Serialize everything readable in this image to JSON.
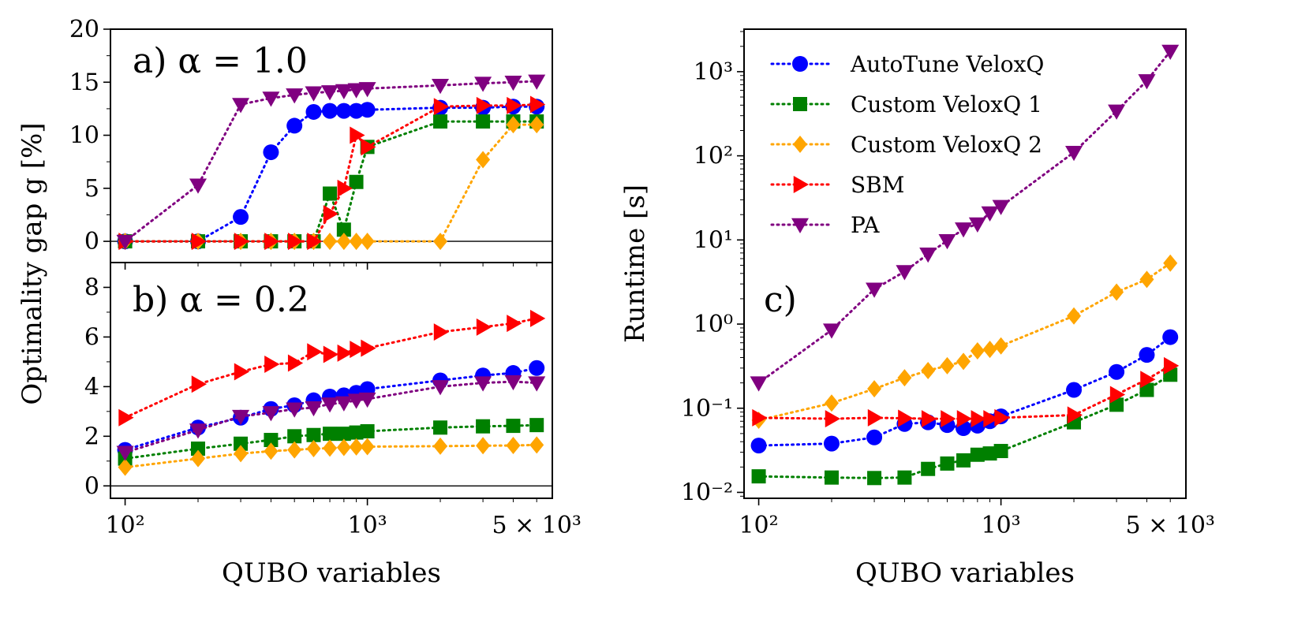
{
  "chart_data": [
    {
      "id": "a",
      "type": "line",
      "panel_label": "a) α = 1.0",
      "ylabel": "Optimality gap g [%]",
      "xlabel": "",
      "xscale": "log",
      "xlim": [
        87,
        5800
      ],
      "ylim": [
        -2,
        20
      ],
      "yticks": [
        0,
        5,
        10,
        15,
        20
      ],
      "ytick_labels": [
        "0",
        "5",
        "10",
        "15",
        "20"
      ],
      "hline": 0,
      "series": [
        {
          "name": "AutoTune VeloxQ",
          "color": "#0000ff",
          "marker": "circle",
          "x": [
            100,
            200,
            300,
            400,
            500,
            600,
            700,
            800,
            900,
            1000,
            2000,
            3000,
            4000,
            5000
          ],
          "y": [
            0,
            0,
            2.3,
            8.4,
            10.9,
            12.2,
            12.3,
            12.3,
            12.3,
            12.4,
            12.6,
            12.6,
            12.7,
            12.7
          ]
        },
        {
          "name": "Custom VeloxQ 1",
          "color": "#008000",
          "marker": "square",
          "x": [
            100,
            200,
            300,
            400,
            500,
            600,
            700,
            800,
            900,
            1000,
            2000,
            3000,
            4000,
            5000
          ],
          "y": [
            0,
            0,
            0,
            0,
            0,
            0,
            4.5,
            1.1,
            5.6,
            8.9,
            11.3,
            11.3,
            11.3,
            11.3
          ]
        },
        {
          "name": "Custom VeloxQ 2",
          "color": "#ffa500",
          "marker": "diamond",
          "x": [
            100,
            200,
            300,
            400,
            500,
            600,
            700,
            800,
            900,
            1000,
            2000,
            3000,
            4000,
            5000
          ],
          "y": [
            0,
            0,
            0,
            0,
            0,
            0,
            0,
            0,
            0,
            0,
            0,
            7.7,
            11.0,
            11.0
          ]
        },
        {
          "name": "SBM",
          "color": "#ff0000",
          "marker": "triangle-right",
          "x": [
            100,
            200,
            300,
            400,
            500,
            600,
            700,
            800,
            900,
            1000,
            2000,
            3000,
            4000,
            5000
          ],
          "y": [
            0,
            0,
            0,
            0,
            0,
            0,
            2.6,
            5.0,
            10.0,
            8.9,
            12.7,
            12.8,
            12.8,
            12.9
          ]
        },
        {
          "name": "PA",
          "color": "#800080",
          "marker": "triangle-down",
          "x": [
            100,
            200,
            300,
            400,
            500,
            600,
            700,
            800,
            900,
            1000,
            2000,
            3000,
            4000,
            5000
          ],
          "y": [
            0,
            5.3,
            12.9,
            13.5,
            13.8,
            14.0,
            14.1,
            14.2,
            14.3,
            14.4,
            14.7,
            14.9,
            15.0,
            15.1
          ]
        }
      ]
    },
    {
      "id": "b",
      "type": "line",
      "panel_label": "b) α = 0.2",
      "ylabel": "",
      "xlabel": "QUBO variables",
      "xscale": "log",
      "xlim": [
        87,
        5800
      ],
      "ylim": [
        -0.5,
        9
      ],
      "yticks": [
        0,
        2,
        4,
        6,
        8
      ],
      "ytick_labels": [
        "0",
        "2",
        "4",
        "6",
        "8"
      ],
      "xticks": [
        100,
        1000,
        5000
      ],
      "xtick_labels": [
        "10²",
        "10³",
        "5 × 10³"
      ],
      "hline": 0,
      "series": [
        {
          "name": "AutoTune VeloxQ",
          "color": "#0000ff",
          "marker": "circle",
          "x": [
            100,
            200,
            300,
            400,
            500,
            600,
            700,
            800,
            900,
            1000,
            2000,
            3000,
            4000,
            5000
          ],
          "y": [
            1.45,
            2.35,
            2.75,
            3.1,
            3.25,
            3.45,
            3.6,
            3.65,
            3.75,
            3.9,
            4.25,
            4.45,
            4.55,
            4.75
          ]
        },
        {
          "name": "Custom VeloxQ 1",
          "color": "#008000",
          "marker": "square",
          "x": [
            100,
            200,
            300,
            400,
            500,
            600,
            700,
            800,
            900,
            1000,
            2000,
            3000,
            4000,
            5000
          ],
          "y": [
            1.1,
            1.5,
            1.7,
            1.85,
            2.0,
            2.05,
            2.1,
            2.1,
            2.15,
            2.2,
            2.35,
            2.4,
            2.42,
            2.45
          ]
        },
        {
          "name": "Custom VeloxQ 2",
          "color": "#ffa500",
          "marker": "diamond",
          "x": [
            100,
            200,
            300,
            400,
            500,
            600,
            700,
            800,
            900,
            1000,
            2000,
            3000,
            4000,
            5000
          ],
          "y": [
            0.75,
            1.1,
            1.3,
            1.4,
            1.45,
            1.5,
            1.52,
            1.55,
            1.57,
            1.58,
            1.6,
            1.62,
            1.63,
            1.65
          ]
        },
        {
          "name": "SBM",
          "color": "#ff0000",
          "marker": "triangle-right",
          "x": [
            100,
            200,
            300,
            400,
            500,
            600,
            700,
            800,
            900,
            1000,
            2000,
            3000,
            4000,
            5000
          ],
          "y": [
            2.75,
            4.1,
            4.6,
            4.9,
            4.95,
            5.4,
            5.3,
            5.35,
            5.5,
            5.55,
            6.2,
            6.4,
            6.55,
            6.75
          ]
        },
        {
          "name": "PA",
          "color": "#800080",
          "marker": "triangle-down",
          "x": [
            100,
            200,
            300,
            400,
            500,
            600,
            700,
            800,
            900,
            1000,
            2000,
            3000,
            4000,
            5000
          ],
          "y": [
            1.35,
            2.25,
            2.8,
            2.95,
            3.1,
            3.15,
            3.3,
            3.35,
            3.45,
            3.5,
            4.0,
            4.15,
            4.2,
            4.15
          ]
        }
      ]
    },
    {
      "id": "c",
      "type": "line",
      "panel_label": "c)",
      "ylabel": "Runtime [s]",
      "xlabel": "QUBO variables",
      "xscale": "log",
      "yscale": "log",
      "xlim": [
        87,
        5800
      ],
      "ylim": [
        0.0085,
        3200
      ],
      "yticks": [
        0.01,
        0.1,
        1,
        10,
        100,
        1000
      ],
      "ytick_labels": [
        "10⁻²",
        "10⁻¹",
        "10⁰",
        "10¹",
        "10²",
        "10³"
      ],
      "xticks": [
        100,
        1000,
        5000
      ],
      "xtick_labels": [
        "10²",
        "10³",
        "5 × 10³"
      ],
      "legend": "top-left",
      "series": [
        {
          "name": "AutoTune VeloxQ",
          "color": "#0000ff",
          "marker": "circle",
          "x": [
            100,
            200,
            300,
            400,
            500,
            600,
            700,
            800,
            900,
            1000,
            2000,
            3000,
            4000,
            5000
          ],
          "y": [
            0.036,
            0.038,
            0.045,
            0.065,
            0.068,
            0.063,
            0.058,
            0.062,
            0.07,
            0.08,
            0.165,
            0.27,
            0.43,
            0.7
          ]
        },
        {
          "name": "Custom VeloxQ 1",
          "color": "#008000",
          "marker": "square",
          "x": [
            100,
            200,
            300,
            400,
            500,
            600,
            700,
            800,
            900,
            1000,
            2000,
            3000,
            4000,
            5000
          ],
          "y": [
            0.0155,
            0.015,
            0.0148,
            0.015,
            0.019,
            0.022,
            0.024,
            0.028,
            0.029,
            0.031,
            0.068,
            0.11,
            0.165,
            0.25
          ]
        },
        {
          "name": "Custom VeloxQ 2",
          "color": "#ffa500",
          "marker": "diamond",
          "x": [
            100,
            200,
            300,
            400,
            500,
            600,
            700,
            800,
            900,
            1000,
            2000,
            3000,
            4000,
            5000
          ],
          "y": [
            0.072,
            0.115,
            0.17,
            0.23,
            0.28,
            0.32,
            0.36,
            0.48,
            0.5,
            0.55,
            1.25,
            2.4,
            3.4,
            5.3
          ]
        },
        {
          "name": "SBM",
          "color": "#ff0000",
          "marker": "triangle-right",
          "x": [
            100,
            200,
            300,
            400,
            500,
            600,
            700,
            800,
            900,
            1000,
            2000,
            3000,
            4000,
            5000
          ],
          "y": [
            0.077,
            0.075,
            0.077,
            0.076,
            0.075,
            0.075,
            0.075,
            0.075,
            0.075,
            0.077,
            0.083,
            0.145,
            0.22,
            0.32
          ]
        },
        {
          "name": "PA",
          "color": "#800080",
          "marker": "triangle-down",
          "x": [
            100,
            200,
            300,
            400,
            500,
            600,
            700,
            800,
            900,
            1000,
            2000,
            3000,
            4000,
            5000
          ],
          "y": [
            0.2,
            0.85,
            2.6,
            4.2,
            6.8,
            9.8,
            13.5,
            15.5,
            21,
            25,
            110,
            340,
            780,
            1750
          ]
        }
      ]
    }
  ]
}
